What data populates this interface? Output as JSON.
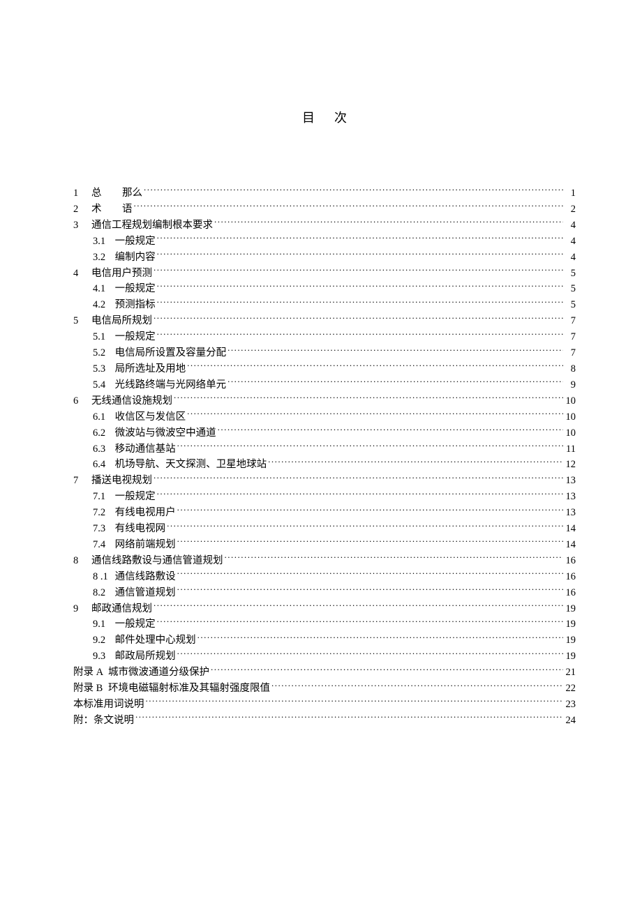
{
  "title": "目次",
  "colors": {
    "background": "#ffffff",
    "text": "#000000"
  },
  "typography": {
    "title_fontsize": 18,
    "body_fontsize": 14.5,
    "line_height": 1.58,
    "font_family": "SimSun"
  },
  "entries": {
    "s1": {
      "num": "1",
      "label_a": "总",
      "label_b": "那么",
      "page": "1"
    },
    "s2": {
      "num": "2",
      "label_a": "术",
      "label_b": "语",
      "page": "2"
    },
    "s3": {
      "num": "3",
      "label": "通信工程规划编制根本要求",
      "page": "4"
    },
    "s3_1": {
      "num": "3.1",
      "label": "一般规定",
      "page": "4"
    },
    "s3_2": {
      "num": "3.2",
      "label": "编制内容",
      "page": "4"
    },
    "s4": {
      "num": "4",
      "label": "电信用户预测",
      "page": "5"
    },
    "s4_1": {
      "num": "4.1",
      "label": "一般规定",
      "page": "5"
    },
    "s4_2": {
      "num": "4.2",
      "label": "预测指标",
      "page": "5"
    },
    "s5": {
      "num": "5",
      "label": "电信局所规划",
      "page": "7"
    },
    "s5_1": {
      "num": "5.1",
      "label": "一般规定",
      "page": "7"
    },
    "s5_2": {
      "num": "5.2",
      "label": "电信局所设置及容量分配",
      "page": "7"
    },
    "s5_3": {
      "num": "5.3",
      "label": "局所选址及用地",
      "page": "8"
    },
    "s5_4": {
      "num": "5.4",
      "label": "光线路终端与光网络单元",
      "page": "9"
    },
    "s6": {
      "num": "6",
      "label": "无线通信设施规划",
      "page": "10"
    },
    "s6_1": {
      "num": "6.1",
      "label": "收信区与发信区",
      "page": "10"
    },
    "s6_2": {
      "num": "6.2",
      "label": "微波站与微波空中通道",
      "page": "10"
    },
    "s6_3": {
      "num": "6.3",
      "label": "移动通信基站",
      "page": "11"
    },
    "s6_4": {
      "num": "6.4",
      "label": "机场导航、天文探测、卫星地球站",
      "page": "12"
    },
    "s7": {
      "num": "7",
      "label": "播送电视规划",
      "page": "13"
    },
    "s7_1": {
      "num": "7.1",
      "label": "一般规定",
      "page": "13"
    },
    "s7_2": {
      "num": "7.2",
      "label": "有线电视用户",
      "page": "13"
    },
    "s7_3": {
      "num": "7.3",
      "label": "有线电视网",
      "page": "14"
    },
    "s7_4": {
      "num": "7.4",
      "label": "网络前端规划",
      "page": "14"
    },
    "s8": {
      "num": "8",
      "label": "通信线路敷设与通信管道规划",
      "page": "16"
    },
    "s8_1": {
      "num": "8 .1",
      "label": "通信线路敷设",
      "page": "16"
    },
    "s8_2": {
      "num": "8.2",
      "label": "通信管道规划",
      "page": "16"
    },
    "s9": {
      "num": "9",
      "label": "邮政通信规划",
      "page": "19"
    },
    "s9_1": {
      "num": "9.1",
      "label": "一般规定",
      "page": "19"
    },
    "s9_2": {
      "num": "9.2",
      "label": "邮件处理中心规划",
      "page": "19"
    },
    "s9_3": {
      "num": "9.3",
      "label": "邮政局所规划",
      "page": "19"
    },
    "appA": {
      "num": "附录 A",
      "label": "城市微波通道分级保护",
      "page": "21"
    },
    "appB": {
      "num": "附录 B",
      "label": "环境电磁辐射标准及其辐射强度限值",
      "page": "22"
    },
    "terms": {
      "label": "本标准用词说明",
      "page": "23"
    },
    "notes": {
      "label": "附：条文说明",
      "page": "24"
    }
  }
}
